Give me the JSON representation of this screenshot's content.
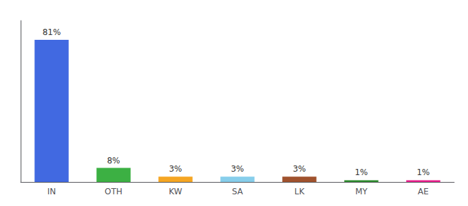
{
  "chart_data": {
    "type": "bar",
    "categories": [
      "IN",
      "OTH",
      "KW",
      "SA",
      "LK",
      "MY",
      "AE"
    ],
    "values": [
      81,
      8,
      3,
      3,
      3,
      1,
      1
    ],
    "value_labels": [
      "81%",
      "8%",
      "3%",
      "3%",
      "3%",
      "1%",
      "1%"
    ],
    "colors": [
      "#4169e1",
      "#3cb043",
      "#f5a623",
      "#87ceeb",
      "#a0522d",
      "#2d8b2d",
      "#e91e8c"
    ],
    "ylim": [
      0,
      92
    ],
    "grid": false,
    "data_labels": true,
    "tick_labels": "x"
  }
}
